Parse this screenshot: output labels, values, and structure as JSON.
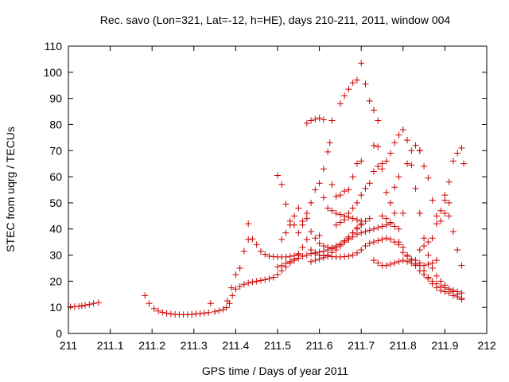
{
  "chart_data": {
    "type": "scatter",
    "title": "Rec. savo (Lon=321, Lat=-12, h=HE), days 210-211, 2011, window 004",
    "xlabel": "GPS time / Days of year 2011",
    "ylabel": "STEC from uqrg / TECUs",
    "xlim": [
      211,
      212
    ],
    "ylim": [
      0,
      110
    ],
    "grid": false,
    "marker": "+",
    "marker_color": "#cc0000",
    "x_ticks": [
      "211",
      "211.1",
      "211.2",
      "211.3",
      "211.4",
      "211.5",
      "211.6",
      "211.7",
      "211.8",
      "211.9",
      "212"
    ],
    "x_tick_values": [
      211,
      211.1,
      211.2,
      211.3,
      211.4,
      211.5,
      211.6,
      211.7,
      211.8,
      211.9,
      212
    ],
    "y_ticks": [
      "0",
      "10",
      "20",
      "30",
      "40",
      "50",
      "60",
      "70",
      "80",
      "90",
      "100",
      "110"
    ],
    "y_tick_values": [
      0,
      10,
      20,
      30,
      40,
      50,
      60,
      70,
      80,
      90,
      100,
      110
    ],
    "points": [
      [
        211.005,
        10.2
      ],
      [
        211.015,
        10.3
      ],
      [
        211.025,
        10.4
      ],
      [
        211.032,
        10.6
      ],
      [
        211.04,
        10.8
      ],
      [
        211.05,
        11.1
      ],
      [
        211.06,
        11.5
      ],
      [
        211.072,
        11.8
      ],
      [
        211.183,
        14.5
      ],
      [
        211.193,
        11.5
      ],
      [
        211.205,
        9.5
      ],
      [
        211.215,
        8.6
      ],
      [
        211.225,
        8.1
      ],
      [
        211.235,
        7.7
      ],
      [
        211.245,
        7.5
      ],
      [
        211.255,
        7.3
      ],
      [
        211.265,
        7.2
      ],
      [
        211.275,
        7.2
      ],
      [
        211.285,
        7.2
      ],
      [
        211.295,
        7.3
      ],
      [
        211.305,
        7.5
      ],
      [
        211.315,
        7.6
      ],
      [
        211.325,
        7.8
      ],
      [
        211.335,
        8.0
      ],
      [
        211.34,
        11.5
      ],
      [
        211.35,
        8.3
      ],
      [
        211.36,
        8.7
      ],
      [
        211.37,
        9.2
      ],
      [
        211.378,
        9.9
      ],
      [
        211.385,
        11.5
      ],
      [
        211.392,
        14.5
      ],
      [
        211.4,
        17.0
      ],
      [
        211.41,
        18.0
      ],
      [
        211.42,
        18.8
      ],
      [
        211.43,
        19.3
      ],
      [
        211.44,
        19.7
      ],
      [
        211.45,
        20.0
      ],
      [
        211.46,
        20.3
      ],
      [
        211.47,
        20.6
      ],
      [
        211.48,
        21.0
      ],
      [
        211.49,
        21.5
      ],
      [
        211.5,
        22.5
      ],
      [
        211.51,
        24.0
      ],
      [
        211.52,
        25.5
      ],
      [
        211.53,
        27.0
      ],
      [
        211.54,
        28.0
      ],
      [
        211.55,
        28.8
      ],
      [
        211.38,
        12.5
      ],
      [
        211.39,
        17.5
      ],
      [
        211.4,
        22.5
      ],
      [
        211.41,
        25.0
      ],
      [
        211.42,
        31.5
      ],
      [
        211.43,
        36.0
      ],
      [
        211.44,
        36.2
      ],
      [
        211.45,
        34.0
      ],
      [
        211.46,
        31.5
      ],
      [
        211.47,
        30.3
      ],
      [
        211.48,
        29.6
      ],
      [
        211.49,
        29.4
      ],
      [
        211.5,
        29.3
      ],
      [
        211.51,
        29.3
      ],
      [
        211.52,
        29.3
      ],
      [
        211.53,
        29.5
      ],
      [
        211.54,
        29.8
      ],
      [
        211.55,
        30.1
      ],
      [
        211.43,
        42.0
      ],
      [
        211.5,
        60.5
      ],
      [
        211.51,
        57.0
      ],
      [
        211.52,
        49.5
      ],
      [
        211.53,
        43.0
      ],
      [
        211.54,
        41.5
      ],
      [
        211.55,
        38.5
      ],
      [
        211.51,
        36.0
      ],
      [
        211.52,
        38.5
      ],
      [
        211.53,
        41.5
      ],
      [
        211.54,
        45.0
      ],
      [
        211.55,
        48.0
      ],
      [
        211.56,
        43.0
      ],
      [
        211.57,
        46.0
      ],
      [
        211.58,
        50.0
      ],
      [
        211.5,
        25.5
      ],
      [
        211.51,
        26.0
      ],
      [
        211.52,
        26.8
      ],
      [
        211.53,
        27.5
      ],
      [
        211.54,
        28.5
      ],
      [
        211.56,
        29.5
      ],
      [
        211.57,
        30.0
      ],
      [
        211.58,
        30.6
      ],
      [
        211.59,
        31.0
      ],
      [
        211.6,
        31.2
      ],
      [
        211.61,
        31.5
      ],
      [
        211.62,
        32.0
      ],
      [
        211.63,
        32.8
      ],
      [
        211.64,
        33.5
      ],
      [
        211.65,
        34.2
      ],
      [
        211.66,
        35.0
      ],
      [
        211.67,
        36.0
      ],
      [
        211.68,
        37.0
      ],
      [
        211.69,
        38.0
      ],
      [
        211.7,
        38.5
      ],
      [
        211.71,
        39.0
      ],
      [
        211.72,
        39.5
      ],
      [
        211.73,
        40.0
      ],
      [
        211.74,
        40.5
      ],
      [
        211.75,
        41.0
      ],
      [
        211.76,
        41.5
      ],
      [
        211.77,
        42.0
      ],
      [
        211.55,
        30.5
      ],
      [
        211.56,
        33.0
      ],
      [
        211.57,
        36.0
      ],
      [
        211.58,
        32.0
      ],
      [
        211.59,
        30.5
      ],
      [
        211.6,
        30.0
      ],
      [
        211.61,
        29.8
      ],
      [
        211.62,
        29.6
      ],
      [
        211.63,
        29.4
      ],
      [
        211.64,
        29.3
      ],
      [
        211.65,
        29.3
      ],
      [
        211.66,
        29.4
      ],
      [
        211.67,
        29.6
      ],
      [
        211.68,
        30.0
      ],
      [
        211.69,
        30.8
      ],
      [
        211.7,
        32.0
      ],
      [
        211.71,
        33.5
      ],
      [
        211.72,
        34.5
      ],
      [
        211.73,
        35.0
      ],
      [
        211.74,
        35.5
      ],
      [
        211.75,
        36.0
      ],
      [
        211.76,
        36.5
      ],
      [
        211.77,
        36.0
      ],
      [
        211.78,
        35.0
      ],
      [
        211.79,
        34.0
      ],
      [
        211.57,
        80.5
      ],
      [
        211.58,
        81.5
      ],
      [
        211.59,
        82.0
      ],
      [
        211.6,
        82.5
      ],
      [
        211.61,
        81.8
      ],
      [
        211.63,
        81.5
      ],
      [
        211.65,
        88.0
      ],
      [
        211.66,
        91.0
      ],
      [
        211.67,
        93.5
      ],
      [
        211.68,
        96.0
      ],
      [
        211.69,
        97.0
      ],
      [
        211.7,
        103.5
      ],
      [
        211.71,
        95.5
      ],
      [
        211.72,
        89.0
      ],
      [
        211.73,
        85.5
      ],
      [
        211.74,
        81.5
      ],
      [
        211.56,
        41.5
      ],
      [
        211.57,
        44.0
      ],
      [
        211.58,
        39.0
      ],
      [
        211.59,
        36.5
      ],
      [
        211.6,
        34.5
      ],
      [
        211.61,
        33.5
      ],
      [
        211.62,
        33.0
      ],
      [
        211.63,
        32.5
      ],
      [
        211.64,
        33.0
      ],
      [
        211.65,
        34.0
      ],
      [
        211.66,
        35.5
      ],
      [
        211.67,
        37.0
      ],
      [
        211.68,
        38.5
      ],
      [
        211.69,
        40.0
      ],
      [
        211.7,
        41.5
      ],
      [
        211.71,
        43.0
      ],
      [
        211.72,
        44.0
      ],
      [
        211.58,
        27.5
      ],
      [
        211.59,
        28.0
      ],
      [
        211.6,
        28.5
      ],
      [
        211.61,
        29.0
      ],
      [
        211.62,
        30.0
      ],
      [
        211.63,
        31.0
      ],
      [
        211.64,
        32.0
      ],
      [
        211.65,
        33.5
      ],
      [
        211.66,
        35.0
      ],
      [
        211.67,
        36.5
      ],
      [
        211.68,
        38.5
      ],
      [
        211.69,
        40.5
      ],
      [
        211.7,
        42.0
      ],
      [
        211.59,
        55.0
      ],
      [
        211.6,
        57.5
      ],
      [
        211.61,
        52.0
      ],
      [
        211.62,
        48.0
      ],
      [
        211.63,
        47.0
      ],
      [
        211.64,
        46.0
      ],
      [
        211.65,
        45.5
      ],
      [
        211.66,
        45.0
      ],
      [
        211.67,
        44.5
      ],
      [
        211.68,
        44.0
      ],
      [
        211.69,
        43.5
      ],
      [
        211.7,
        43.0
      ],
      [
        211.6,
        37.5
      ],
      [
        211.61,
        63.0
      ],
      [
        211.62,
        69.5
      ],
      [
        211.625,
        73.0
      ],
      [
        211.63,
        57.0
      ],
      [
        211.64,
        52.5
      ],
      [
        211.65,
        53.0
      ],
      [
        211.66,
        54.5
      ],
      [
        211.67,
        55.0
      ],
      [
        211.68,
        60.0
      ],
      [
        211.69,
        65.0
      ],
      [
        211.7,
        66.0
      ],
      [
        211.64,
        41.5
      ],
      [
        211.65,
        42.5
      ],
      [
        211.66,
        43.5
      ],
      [
        211.67,
        46.0
      ],
      [
        211.68,
        48.0
      ],
      [
        211.69,
        50.0
      ],
      [
        211.7,
        53.0
      ],
      [
        211.71,
        55.5
      ],
      [
        211.72,
        57.5
      ],
      [
        211.73,
        62.0
      ],
      [
        211.74,
        64.0
      ],
      [
        211.75,
        65.0
      ],
      [
        211.76,
        66.0
      ],
      [
        211.77,
        69.0
      ],
      [
        211.78,
        73.0
      ],
      [
        211.79,
        76.0
      ],
      [
        211.8,
        78.0
      ],
      [
        211.81,
        74.0
      ],
      [
        211.82,
        70.0
      ],
      [
        211.83,
        72.0
      ],
      [
        211.84,
        70.0
      ],
      [
        211.73,
        28.0
      ],
      [
        211.74,
        27.0
      ],
      [
        211.75,
        26.0
      ],
      [
        211.76,
        26.0
      ],
      [
        211.77,
        26.5
      ],
      [
        211.78,
        27.0
      ],
      [
        211.79,
        27.5
      ],
      [
        211.8,
        28.0
      ],
      [
        211.81,
        27.5
      ],
      [
        211.82,
        27.0
      ],
      [
        211.83,
        26.5
      ],
      [
        211.84,
        26.0
      ],
      [
        211.85,
        26.0
      ],
      [
        211.86,
        26.5
      ],
      [
        211.87,
        27.0
      ],
      [
        211.73,
        72.0
      ],
      [
        211.74,
        71.5
      ],
      [
        211.75,
        63.0
      ],
      [
        211.76,
        54.0
      ],
      [
        211.77,
        50.0
      ],
      [
        211.78,
        46.0
      ],
      [
        211.79,
        40.0
      ],
      [
        211.8,
        33.0
      ],
      [
        211.81,
        30.0
      ],
      [
        211.82,
        28.5
      ],
      [
        211.83,
        28.0
      ],
      [
        211.84,
        27.0
      ],
      [
        211.85,
        24.0
      ],
      [
        211.86,
        21.5
      ],
      [
        211.87,
        20.0
      ],
      [
        211.88,
        19.0
      ],
      [
        211.89,
        18.0
      ],
      [
        211.9,
        17.5
      ],
      [
        211.91,
        17.0
      ],
      [
        211.92,
        16.5
      ],
      [
        211.93,
        16.0
      ],
      [
        211.94,
        15.5
      ],
      [
        211.75,
        45.0
      ],
      [
        211.76,
        44.0
      ],
      [
        211.77,
        42.5
      ],
      [
        211.78,
        41.0
      ],
      [
        211.79,
        35.0
      ],
      [
        211.8,
        31.0
      ],
      [
        211.81,
        29.5
      ],
      [
        211.82,
        28.0
      ],
      [
        211.83,
        26.0
      ],
      [
        211.84,
        24.0
      ],
      [
        211.85,
        22.5
      ],
      [
        211.86,
        21.0
      ],
      [
        211.87,
        19.0
      ],
      [
        211.88,
        17.5
      ],
      [
        211.89,
        16.5
      ],
      [
        211.9,
        16.0
      ],
      [
        211.91,
        15.5
      ],
      [
        211.92,
        14.5
      ],
      [
        211.93,
        14.0
      ],
      [
        211.94,
        13.5
      ],
      [
        211.78,
        56.0
      ],
      [
        211.79,
        60.0
      ],
      [
        211.8,
        46.0
      ],
      [
        211.81,
        65.0
      ],
      [
        211.82,
        64.5
      ],
      [
        211.83,
        55.5
      ],
      [
        211.84,
        46.0
      ],
      [
        211.85,
        36.5
      ],
      [
        211.86,
        30.0
      ],
      [
        211.87,
        25.0
      ],
      [
        211.88,
        22.0
      ],
      [
        211.89,
        20.0
      ],
      [
        211.9,
        18.5
      ],
      [
        211.91,
        17.0
      ],
      [
        211.92,
        16.0
      ],
      [
        211.93,
        15.0
      ],
      [
        211.94,
        13.0
      ],
      [
        211.84,
        32.0
      ],
      [
        211.85,
        33.5
      ],
      [
        211.86,
        35.0
      ],
      [
        211.87,
        36.5
      ],
      [
        211.88,
        42.0
      ],
      [
        211.89,
        47.0
      ],
      [
        211.9,
        51.0
      ],
      [
        211.91,
        58.0
      ],
      [
        211.92,
        66.0
      ],
      [
        211.93,
        69.0
      ],
      [
        211.94,
        71.0
      ],
      [
        211.945,
        65.0
      ],
      [
        211.86,
        59.5
      ],
      [
        211.87,
        51.0
      ],
      [
        211.88,
        45.0
      ],
      [
        211.89,
        43.0
      ],
      [
        211.9,
        46.0
      ],
      [
        211.91,
        45.0
      ],
      [
        211.92,
        39.0
      ],
      [
        211.93,
        32.0
      ],
      [
        211.94,
        26.0
      ],
      [
        211.84,
        70.0
      ],
      [
        211.85,
        64.0
      ],
      [
        211.88,
        28.0
      ],
      [
        211.9,
        53.0
      ],
      [
        211.91,
        50.0
      ]
    ]
  }
}
